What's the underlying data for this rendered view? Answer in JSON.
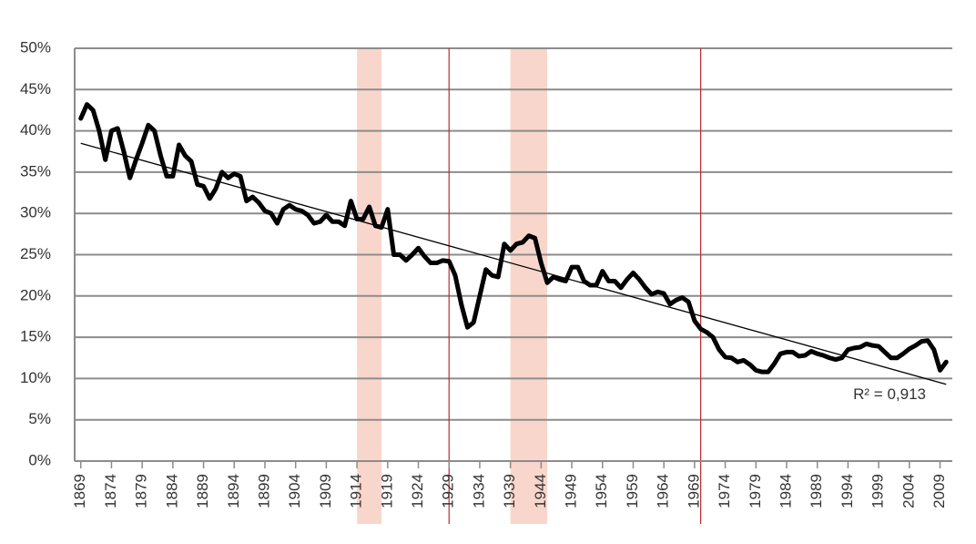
{
  "chart_data": {
    "type": "line",
    "x": [
      1869,
      1870,
      1871,
      1872,
      1873,
      1874,
      1875,
      1876,
      1877,
      1878,
      1879,
      1880,
      1881,
      1882,
      1883,
      1884,
      1885,
      1886,
      1887,
      1888,
      1889,
      1890,
      1891,
      1892,
      1893,
      1894,
      1895,
      1896,
      1897,
      1898,
      1899,
      1900,
      1901,
      1902,
      1903,
      1904,
      1905,
      1906,
      1907,
      1908,
      1909,
      1910,
      1911,
      1912,
      1913,
      1914,
      1915,
      1916,
      1917,
      1918,
      1919,
      1920,
      1921,
      1922,
      1923,
      1924,
      1925,
      1926,
      1927,
      1928,
      1929,
      1930,
      1931,
      1932,
      1933,
      1934,
      1935,
      1936,
      1937,
      1938,
      1939,
      1940,
      1941,
      1942,
      1943,
      1944,
      1945,
      1946,
      1947,
      1948,
      1949,
      1950,
      1951,
      1952,
      1953,
      1954,
      1955,
      1956,
      1957,
      1958,
      1959,
      1960,
      1961,
      1962,
      1963,
      1964,
      1965,
      1966,
      1967,
      1968,
      1969,
      1970,
      1971,
      1972,
      1973,
      1974,
      1975,
      1976,
      1977,
      1978,
      1979,
      1980,
      1981,
      1982,
      1983,
      1984,
      1985,
      1986,
      1987,
      1988,
      1989,
      1990,
      1991,
      1992,
      1993,
      1994,
      1995,
      1996,
      1997,
      1998,
      1999,
      2000,
      2001,
      2002,
      2003,
      2004,
      2005,
      2006,
      2007,
      2008,
      2009,
      2010
    ],
    "series": [
      {
        "color": "#000000",
        "values": [
          41.5,
          43.2,
          42.5,
          40,
          36.5,
          40,
          40.3,
          37.5,
          34.3,
          36.5,
          38.5,
          40.7,
          40,
          37,
          34.5,
          34.5,
          38.3,
          37,
          36.3,
          33.5,
          33.3,
          31.8,
          33,
          35,
          34.3,
          34.8,
          34.5,
          31.5,
          32,
          31.3,
          30.3,
          30,
          28.8,
          30.5,
          31,
          30.5,
          30.3,
          29.8,
          28.8,
          29,
          29.8,
          29,
          29,
          28.5,
          31.5,
          29.3,
          29.3,
          30.8,
          28.5,
          28.3,
          30.5,
          25,
          25,
          24.3,
          25,
          25.8,
          24.8,
          24,
          24,
          24.3,
          24.2,
          22.5,
          19,
          16.2,
          16.8,
          20,
          23.2,
          22.5,
          22.3,
          26.3,
          25.5,
          26.3,
          26.5,
          27.3,
          27,
          24,
          21.6,
          22.3,
          22,
          21.8,
          23.5,
          23.5,
          21.8,
          21.3,
          21.3,
          23,
          21.8,
          21.8,
          21,
          22,
          22.8,
          22,
          21,
          20.2,
          20.5,
          20.3,
          19,
          19.5,
          19.8,
          19.3,
          17,
          16,
          15.6,
          15,
          13.5,
          12.6,
          12.5,
          12,
          12.2,
          11.7,
          11,
          10.8,
          10.8,
          11.8,
          13,
          13.2,
          13.2,
          12.7,
          12.8,
          13.3,
          13,
          12.8,
          12.5,
          12.3,
          12.5,
          13.5,
          13.7,
          13.8,
          14.2,
          14,
          13.9,
          13.2,
          12.5,
          12.5,
          13,
          13.6,
          14,
          14.5,
          14.6,
          13.5,
          11,
          12
        ]
      }
    ],
    "trendline": {
      "x": [
        1869,
        2010
      ],
      "values": [
        38.5,
        9.3
      ],
      "color": "#000000",
      "label": "R² = 0,913"
    },
    "shaded_periods": [
      [
        1914,
        1918
      ],
      [
        1939,
        1945
      ]
    ],
    "shade_color": "#f8cfc2",
    "vlines": [
      1929,
      1970
    ],
    "vline_color": "#c0282d",
    "xlim": [
      1868,
      2011
    ],
    "xticks": [
      1869,
      1874,
      1879,
      1884,
      1889,
      1894,
      1899,
      1904,
      1909,
      1914,
      1919,
      1924,
      1929,
      1934,
      1939,
      1944,
      1949,
      1954,
      1959,
      1964,
      1969,
      1974,
      1979,
      1984,
      1989,
      1994,
      1999,
      2004,
      2009
    ],
    "ylim": [
      0,
      50
    ],
    "yticks": [
      {
        "value": 0,
        "label": "0%"
      },
      {
        "value": 5,
        "label": "5%"
      },
      {
        "value": 10,
        "label": "10%"
      },
      {
        "value": 15,
        "label": "15%"
      },
      {
        "value": 20,
        "label": "20%"
      },
      {
        "value": 25,
        "label": "25%"
      },
      {
        "value": 30,
        "label": "30%"
      },
      {
        "value": 35,
        "label": "35%"
      },
      {
        "value": 40,
        "label": "40%"
      },
      {
        "value": 45,
        "label": "45%"
      },
      {
        "value": 50,
        "label": "50%"
      }
    ],
    "grid": true
  }
}
